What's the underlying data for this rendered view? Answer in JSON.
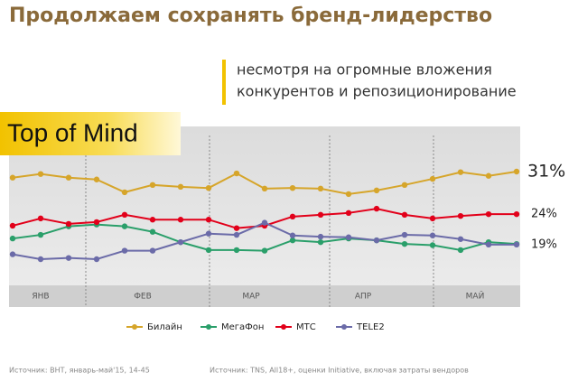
{
  "chart_data": {
    "type": "line",
    "title": "Продолжаем сохранять бренд-лидерство",
    "subtitle": [
      "несмотря на огромные вложения",
      "конкурентов и репозиционирование"
    ],
    "badge": "Top of Mind",
    "months": [
      "ЯНВ",
      "ФЕВ",
      "МАР",
      "АПР",
      "МАЙ"
    ],
    "series": [
      {
        "name": "Билайн",
        "color": "#d6a52a",
        "values": [
          30.0,
          30.6,
          30.0,
          29.7,
          27.6,
          28.8,
          28.5,
          28.3,
          30.7,
          28.2,
          28.3,
          28.2,
          27.3,
          27.9,
          28.8,
          29.8,
          30.9,
          30.3,
          31
        ],
        "value_labels": [
          null,
          null,
          null,
          null,
          null,
          null,
          null,
          null,
          null,
          null,
          null,
          null,
          null,
          null,
          null,
          null,
          null,
          null,
          "31%"
        ]
      },
      {
        "name": "МегаФон",
        "color": "#2a9f6a",
        "values": [
          20.0,
          20.6,
          22.0,
          22.3,
          22.0,
          21.1,
          19.4,
          18.1,
          18.1,
          18.0,
          19.7,
          19.4,
          20.0,
          19.7,
          19.1,
          18.9,
          18.1,
          19.4,
          19.1
        ],
        "value_labels": [
          null,
          null,
          null,
          null,
          null,
          null,
          null,
          null,
          null,
          null,
          null,
          null,
          null,
          null,
          null,
          null,
          null,
          null,
          null
        ]
      },
      {
        "name": "МТС",
        "color": "#e2001a",
        "values": [
          22.1,
          23.3,
          22.4,
          22.7,
          23.9,
          23.1,
          23.1,
          23.1,
          21.7,
          22.1,
          23.6,
          23.9,
          24.2,
          24.9,
          23.9,
          23.3,
          23.7,
          24,
          24
        ],
        "value_labels": [
          null,
          null,
          null,
          null,
          null,
          null,
          null,
          null,
          null,
          null,
          null,
          null,
          null,
          null,
          null,
          null,
          null,
          null,
          "24%"
        ]
      },
      {
        "name": "TELE2",
        "color": "#6b6ba8",
        "values": [
          17.4,
          16.6,
          16.8,
          16.6,
          18.0,
          18.0,
          19.4,
          20.8,
          20.6,
          22.6,
          20.5,
          20.3,
          20.2,
          19.7,
          20.6,
          20.5,
          19.9,
          19,
          19
        ],
        "value_labels": [
          null,
          null,
          null,
          null,
          null,
          null,
          null,
          null,
          null,
          null,
          null,
          null,
          null,
          null,
          null,
          null,
          null,
          null,
          "19%"
        ]
      }
    ],
    "legend": "bottom",
    "sources": [
      "Источник: ВНТ, январь-май'15, 14-45",
      "Источник: TNS, All18+, оценки Initiative, включая затраты вендоров"
    ]
  }
}
